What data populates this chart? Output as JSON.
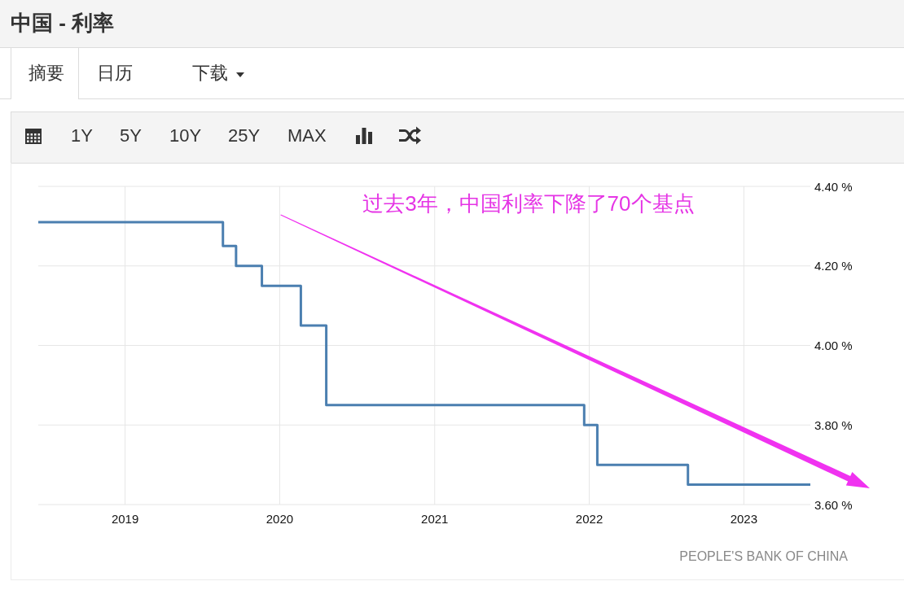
{
  "chart_data": {
    "type": "step",
    "title": "中国 - 利率",
    "annotations": [
      "摘要",
      "日历",
      "下载",
      "1Y",
      "5Y",
      "10Y",
      "25Y",
      "MAX",
      "过去3年，中国利率下降了70个基点",
      "PEOPLE'S BANK OF CHINA"
    ],
    "x": [
      "2018-06-10",
      "2019-08-20",
      "2019-09-20",
      "2019-11-20",
      "2020-02-20",
      "2020-04-20",
      "2021-12-20",
      "2022-01-20",
      "2022-08-22",
      "2023-06-07"
    ],
    "series": [
      {
        "color": "#4b7fb0",
        "values": [
          4.31,
          4.25,
          4.2,
          4.15,
          4.05,
          3.85,
          3.8,
          3.7,
          3.65,
          3.65
        ]
      }
    ],
    "xlim": [
      "2018-06-10",
      "2023-06-07"
    ],
    "xticks": [
      "2019",
      "2020",
      "2021",
      "2022",
      "2023"
    ],
    "ylim": [
      3.6,
      4.4
    ],
    "yticks": [
      {
        "value": 3.6,
        "label": "3.60 %"
      },
      {
        "value": 3.8,
        "label": "3.80 %"
      },
      {
        "value": 4.0,
        "label": "4.00 %"
      },
      {
        "value": 4.2,
        "label": "4.20 %"
      },
      {
        "value": 4.4,
        "label": "4.40 %"
      }
    ],
    "grid": true
  }
}
